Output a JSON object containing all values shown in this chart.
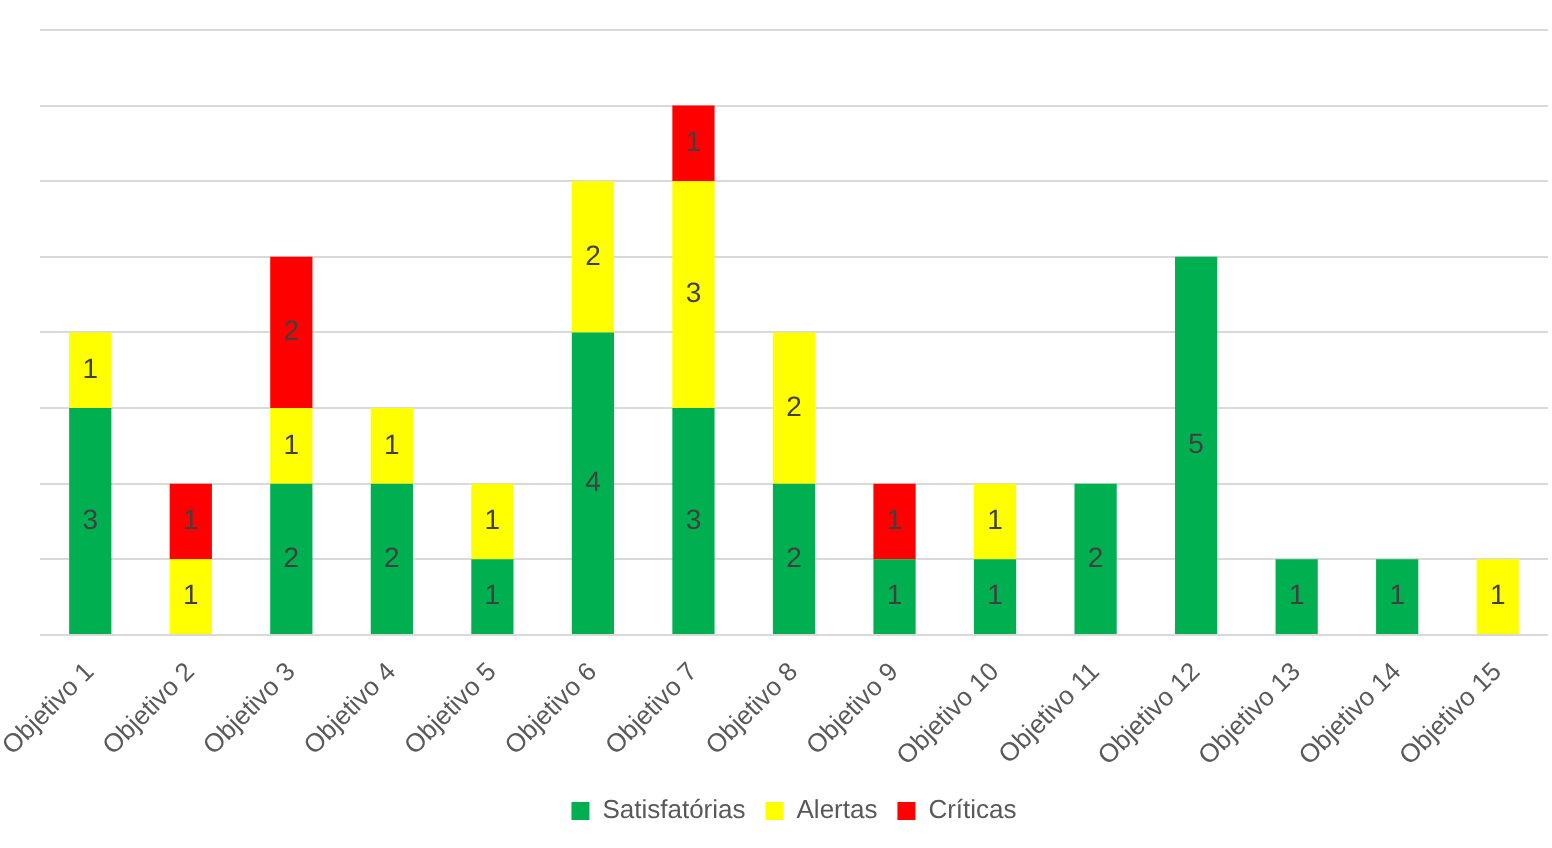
{
  "chart_data": {
    "type": "bar",
    "stacked": true,
    "categories": [
      "Objetivo 1",
      "Objetivo 2",
      "Objetivo 3",
      "Objetivo 4",
      "Objetivo 5",
      "Objetivo 6",
      "Objetivo 7",
      "Objetivo 8",
      "Objetivo 9",
      "Objetivo 10",
      "Objetivo 11",
      "Objetivo 12",
      "Objetivo 13",
      "Objetivo 14",
      "Objetivo 15"
    ],
    "series": [
      {
        "name": "Satisfatórias",
        "color": "#00b050",
        "values": [
          3,
          null,
          2,
          2,
          1,
          4,
          3,
          2,
          1,
          1,
          2,
          5,
          1,
          1,
          null
        ]
      },
      {
        "name": "Alertas",
        "color": "#ffff00",
        "values": [
          1,
          1,
          1,
          1,
          1,
          2,
          3,
          2,
          null,
          1,
          null,
          null,
          null,
          null,
          1
        ]
      },
      {
        "name": "Críticas",
        "color": "#ff0000",
        "values": [
          null,
          1,
          2,
          null,
          null,
          null,
          1,
          null,
          1,
          null,
          null,
          null,
          null,
          null,
          null
        ]
      }
    ],
    "ylim": [
      0,
      8
    ],
    "yticks": [
      {
        "value": 0,
        "label": null
      },
      {
        "value": 1,
        "label": null
      },
      {
        "value": 2,
        "label": null
      },
      {
        "value": 3,
        "label": null
      },
      {
        "value": 4,
        "label": null
      },
      {
        "value": 5,
        "label": null
      },
      {
        "value": 6,
        "label": null
      },
      {
        "value": 7,
        "label": null
      },
      {
        "value": 8,
        "label": null
      }
    ],
    "tick_labels": "x",
    "grid": "y",
    "legend": "bottom",
    "data_labels": true
  }
}
